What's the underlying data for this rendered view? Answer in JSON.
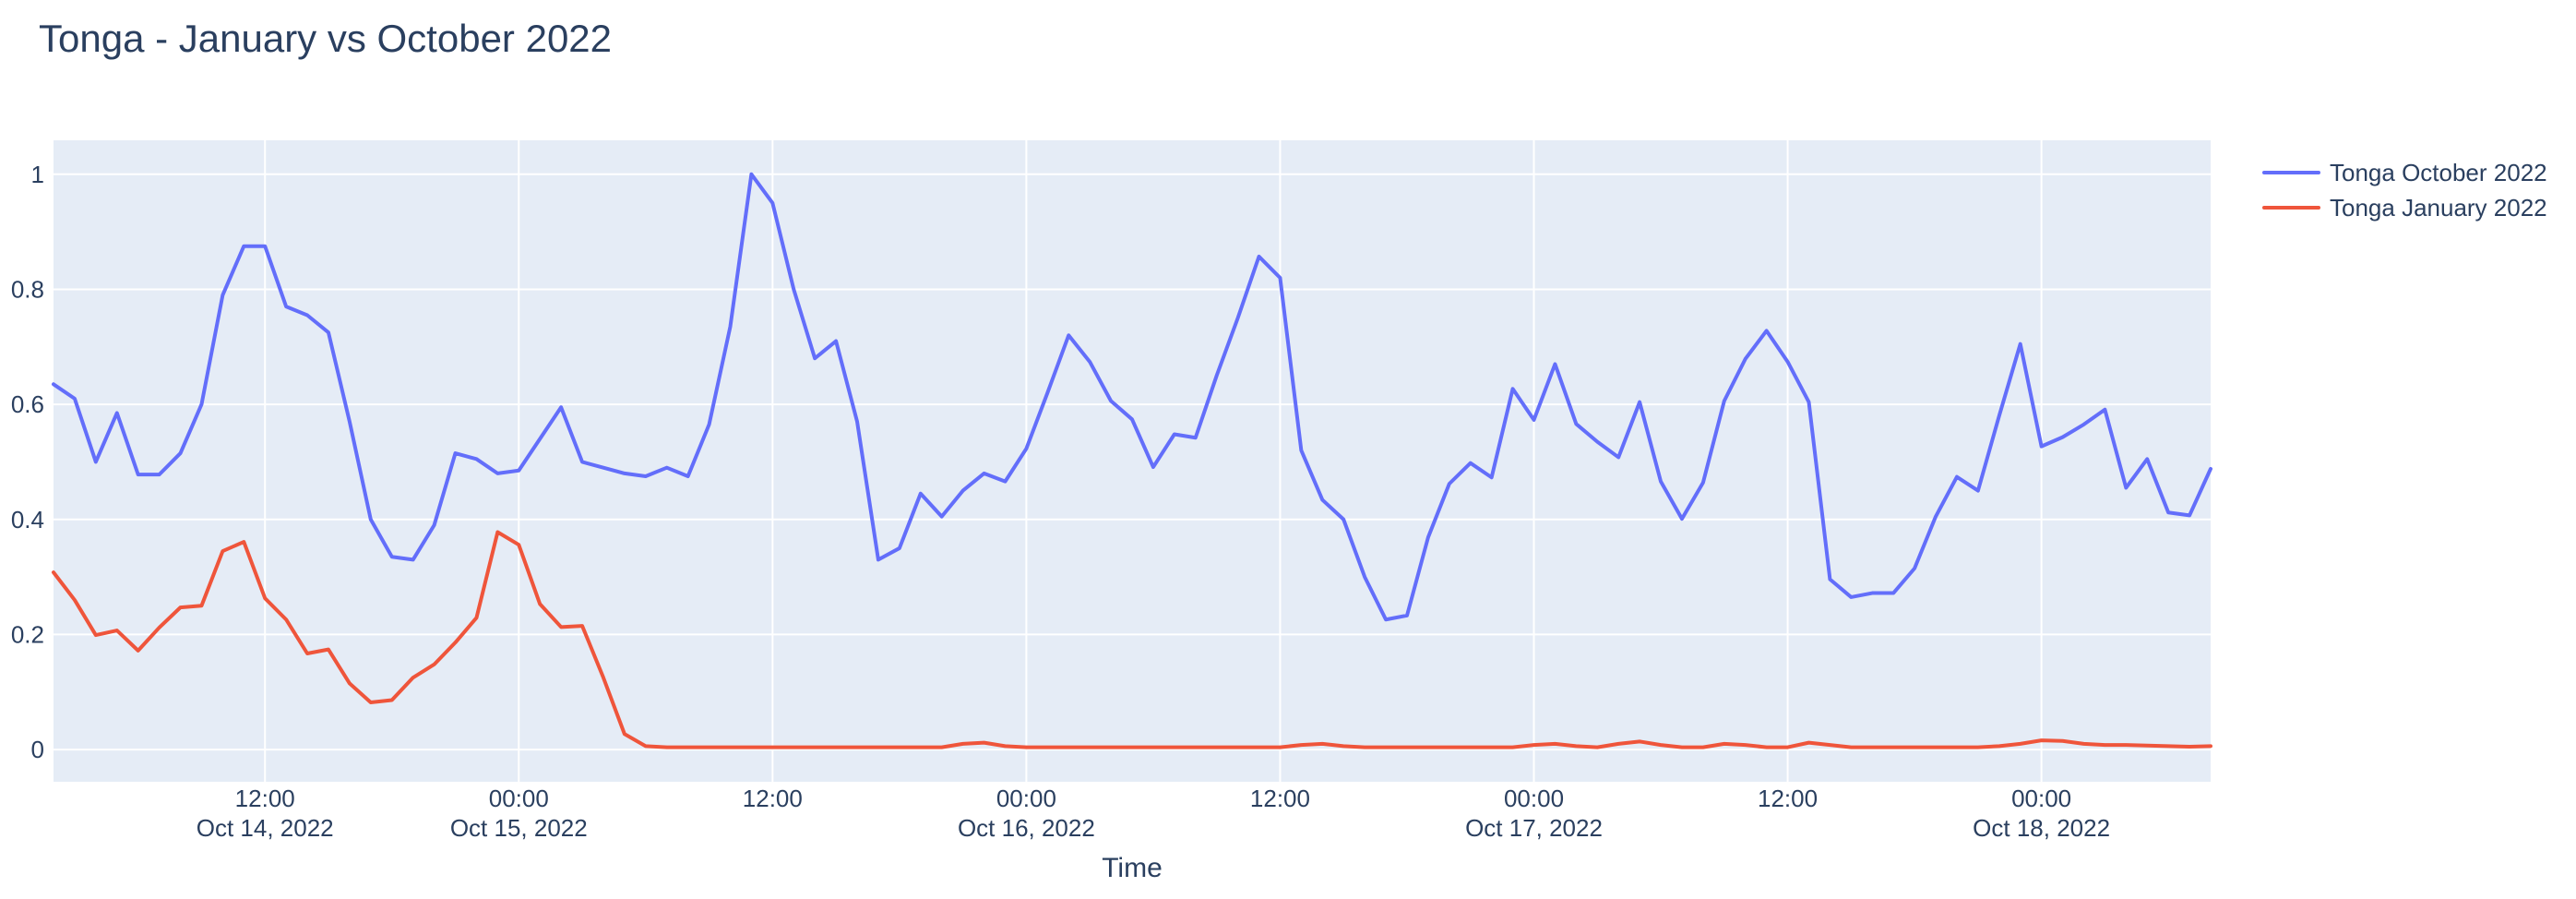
{
  "page": {
    "background": "#ffffff"
  },
  "chart_data": {
    "type": "line",
    "title": "Tonga - January vs October 2022",
    "xlabel": "Time",
    "ylabel": "",
    "x_start": "2022-10-14 02:00",
    "x_interval_hours": 1,
    "xlim_hours": [
      0,
      102
    ],
    "ylim": [
      -0.056,
      1.059
    ],
    "grid": true,
    "legend_position": "outside-top-right",
    "plot_bg": "#E5ECF6",
    "grid_color": "#FFFFFF",
    "text_color": "#2a3f5f",
    "yticks": [
      {
        "v": 0,
        "label": "0"
      },
      {
        "v": 0.2,
        "label": "0.2"
      },
      {
        "v": 0.4,
        "label": "0.4"
      },
      {
        "v": 0.6,
        "label": "0.6"
      },
      {
        "v": 0.8,
        "label": "0.8"
      },
      {
        "v": 1,
        "label": "1"
      }
    ],
    "xticks": [
      {
        "hour": 10,
        "time": "12:00",
        "date": "Oct 14, 2022"
      },
      {
        "hour": 22,
        "time": "00:00",
        "date": "Oct 15, 2022"
      },
      {
        "hour": 34,
        "time": "12:00",
        "date": ""
      },
      {
        "hour": 46,
        "time": "00:00",
        "date": "Oct 16, 2022"
      },
      {
        "hour": 58,
        "time": "12:00",
        "date": ""
      },
      {
        "hour": 70,
        "time": "00:00",
        "date": "Oct 17, 2022"
      },
      {
        "hour": 82,
        "time": "12:00",
        "date": ""
      },
      {
        "hour": 94,
        "time": "00:00",
        "date": "Oct 18, 2022"
      }
    ],
    "series": [
      {
        "name": "Tonga October 2022",
        "color": "#636EFA",
        "values": [
          0.635,
          0.61,
          0.5,
          0.585,
          0.478,
          0.478,
          0.515,
          0.6,
          0.79,
          0.875,
          0.875,
          0.77,
          0.755,
          0.725,
          0.57,
          0.4,
          0.335,
          0.33,
          0.39,
          0.515,
          0.505,
          0.48,
          0.485,
          0.54,
          0.595,
          0.5,
          0.49,
          0.48,
          0.475,
          0.49,
          0.475,
          0.565,
          0.735,
          1.0,
          0.95,
          0.8,
          0.68,
          0.71,
          0.57,
          0.33,
          0.35,
          0.445,
          0.405,
          0.45,
          0.48,
          0.466,
          0.523,
          0.62,
          0.72,
          0.674,
          0.606,
          0.574,
          0.491,
          0.548,
          0.542,
          0.65,
          0.75,
          0.857,
          0.82,
          0.52,
          0.434,
          0.4,
          0.3,
          0.226,
          0.233,
          0.369,
          0.462,
          0.498,
          0.473,
          0.627,
          0.573,
          0.67,
          0.566,
          0.535,
          0.508,
          0.604,
          0.466,
          0.401,
          0.464,
          0.606,
          0.679,
          0.728,
          0.674,
          0.604,
          0.296,
          0.265,
          0.272,
          0.272,
          0.315,
          0.405,
          0.474,
          0.45,
          0.58,
          0.705,
          0.527,
          0.543,
          0.565,
          0.591,
          0.455,
          0.505,
          0.412,
          0.407,
          0.488
        ]
      },
      {
        "name": "Tonga January 2022",
        "color": "#EF553B",
        "values": [
          0.308,
          0.26,
          0.199,
          0.207,
          0.172,
          0.212,
          0.247,
          0.25,
          0.345,
          0.361,
          0.263,
          0.226,
          0.167,
          0.174,
          0.115,
          0.082,
          0.086,
          0.125,
          0.148,
          0.186,
          0.229,
          0.378,
          0.356,
          0.253,
          0.213,
          0.215,
          0.125,
          0.027,
          0.006,
          0.004,
          0.004,
          0.004,
          0.004,
          0.004,
          0.004,
          0.004,
          0.004,
          0.004,
          0.004,
          0.004,
          0.004,
          0.004,
          0.004,
          0.01,
          0.012,
          0.006,
          0.004,
          0.004,
          0.004,
          0.004,
          0.004,
          0.004,
          0.004,
          0.004,
          0.004,
          0.004,
          0.004,
          0.004,
          0.004,
          0.008,
          0.01,
          0.006,
          0.004,
          0.004,
          0.004,
          0.004,
          0.004,
          0.004,
          0.004,
          0.004,
          0.008,
          0.01,
          0.006,
          0.004,
          0.01,
          0.014,
          0.008,
          0.004,
          0.004,
          0.01,
          0.008,
          0.004,
          0.004,
          0.012,
          0.008,
          0.004,
          0.004,
          0.004,
          0.004,
          0.004,
          0.004,
          0.004,
          0.006,
          0.01,
          0.016,
          0.015,
          0.01,
          0.008,
          0.008,
          0.007,
          0.006,
          0.005,
          0.006
        ]
      }
    ]
  }
}
